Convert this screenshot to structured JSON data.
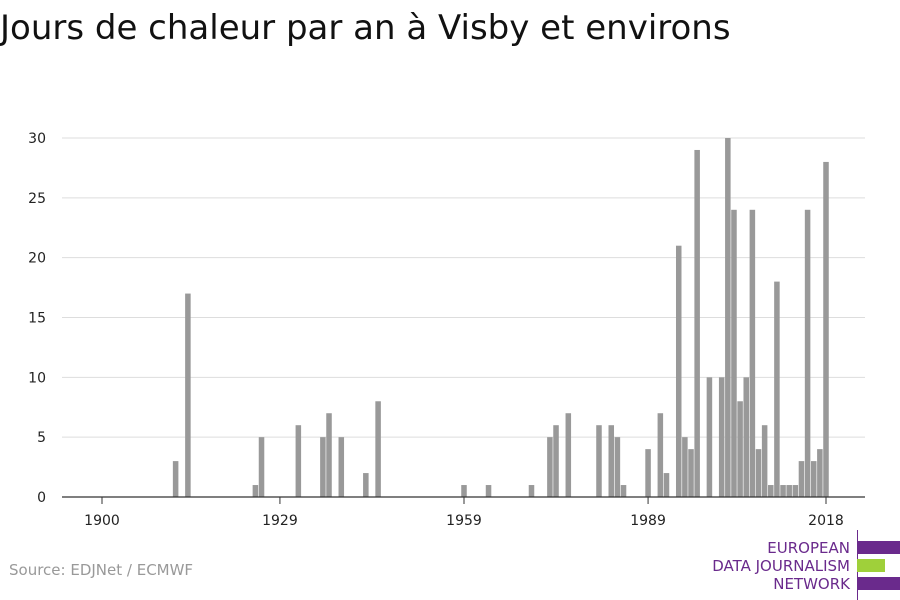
{
  "page": {
    "title": "Jours de chaleur par an à Visby et environs",
    "source": "Source: EDJNet / ECMWF"
  },
  "logo": {
    "line1": "EUROPEAN",
    "line2": "DATA JOURNALISM",
    "line3": "NETWORK",
    "colors": {
      "purple": "#6a2a8c",
      "green": "#9fd03a"
    }
  },
  "chart_data": {
    "type": "bar",
    "title": "Jours de chaleur par an à Visby et environs",
    "xlabel": "",
    "ylabel": "",
    "xlim": [
      1900,
      2018
    ],
    "ylim": [
      0,
      30
    ],
    "x_ticks": [
      1900,
      1929,
      1959,
      1989,
      2018
    ],
    "y_ticks": [
      0,
      5,
      10,
      15,
      20,
      25,
      30
    ],
    "grid": true,
    "bar_color": "#999999",
    "points": [
      [
        1912,
        3
      ],
      [
        1914,
        17
      ],
      [
        1925,
        1
      ],
      [
        1926,
        5
      ],
      [
        1932,
        6
      ],
      [
        1936,
        5
      ],
      [
        1937,
        7
      ],
      [
        1939,
        5
      ],
      [
        1943,
        2
      ],
      [
        1945,
        8
      ],
      [
        1959,
        1
      ],
      [
        1963,
        1
      ],
      [
        1970,
        1
      ],
      [
        1973,
        5
      ],
      [
        1974,
        6
      ],
      [
        1976,
        7
      ],
      [
        1981,
        6
      ],
      [
        1983,
        6
      ],
      [
        1984,
        5
      ],
      [
        1985,
        1
      ],
      [
        1989,
        4
      ],
      [
        1991,
        7
      ],
      [
        1992,
        2
      ],
      [
        1994,
        21
      ],
      [
        1995,
        5
      ],
      [
        1996,
        4
      ],
      [
        1997,
        29
      ],
      [
        1999,
        10
      ],
      [
        2001,
        10
      ],
      [
        2002,
        30
      ],
      [
        2003,
        24
      ],
      [
        2004,
        8
      ],
      [
        2005,
        10
      ],
      [
        2006,
        24
      ],
      [
        2007,
        4
      ],
      [
        2008,
        6
      ],
      [
        2009,
        1
      ],
      [
        2010,
        18
      ],
      [
        2011,
        1
      ],
      [
        2012,
        1
      ],
      [
        2013,
        1
      ],
      [
        2014,
        3
      ],
      [
        2015,
        24
      ],
      [
        2016,
        3
      ],
      [
        2017,
        4
      ],
      [
        2018,
        28
      ]
    ]
  }
}
